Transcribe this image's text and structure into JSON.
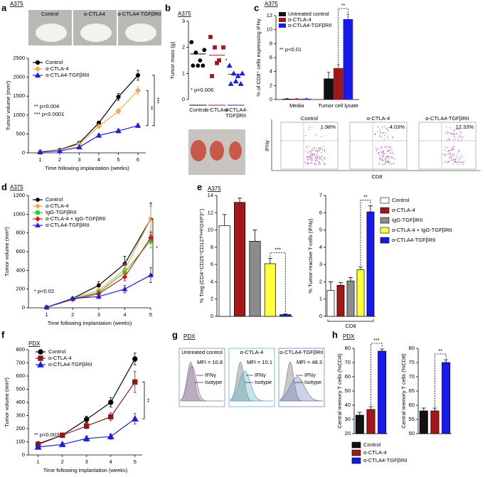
{
  "chart_data": [
    {
      "panel": "a",
      "type": "line",
      "subtitle": "A375",
      "photo_labels": [
        "Control",
        "α-CTLA4",
        "α-CTLA4-TGFβRII"
      ],
      "ylabel": "Tumor volume (mm³)",
      "xlabel": "Time following implantation (weeks)",
      "x": [
        1,
        2,
        3,
        4,
        5,
        6
      ],
      "xlim": [
        0.4,
        6.4
      ],
      "xticks": [
        1,
        2,
        3,
        4,
        5,
        6
      ],
      "ylim": [
        0,
        2500
      ],
      "yticks": [
        0,
        500,
        1000,
        1500,
        2000,
        2500
      ],
      "series": [
        {
          "name": "Control",
          "color": "#000000",
          "marker": "circle",
          "values": [
            30,
            80,
            260,
            790,
            1480,
            2050
          ],
          "errors": [
            10,
            15,
            30,
            50,
            90,
            130
          ]
        },
        {
          "name": "α-CTLA-4",
          "color": "#f0a860",
          "marker": "diamond",
          "values": [
            30,
            70,
            230,
            700,
            1100,
            1650
          ],
          "errors": [
            10,
            15,
            25,
            45,
            70,
            100
          ]
        },
        {
          "name": "α-CTLA4-TGFβRII",
          "color": "#2020d0",
          "marker": "triangle",
          "values": [
            20,
            50,
            150,
            460,
            580,
            720
          ],
          "errors": [
            8,
            10,
            20,
            40,
            50,
            50
          ]
        }
      ],
      "annotations": [
        "** p=0.004",
        "*** p<0.0001"
      ],
      "brackets": [
        "**",
        "***"
      ]
    },
    {
      "panel": "b",
      "type": "strip",
      "subtitle": "A375",
      "ylabel": "Tumor mass (g)",
      "categories": [
        "Control",
        "α-CTLA-4",
        [
          "α-CTLA4-",
          "TGFβRII"
        ]
      ],
      "ylim": [
        0,
        3
      ],
      "yticks": [
        0,
        1,
        2,
        3
      ],
      "series": [
        {
          "color": "#000000",
          "marker": "circle",
          "values": [
            2.2,
            1.9,
            1.8,
            1.5,
            1.3,
            1.3,
            1.3
          ],
          "mean": 1.75
        },
        {
          "color": "#a01818",
          "marker": "square",
          "values": [
            2.4,
            2.0,
            2.0,
            1.5,
            1.4,
            0.9
          ],
          "mean": 1.7
        },
        {
          "color": "#2020d0",
          "marker": "triangle",
          "values": [
            1.3,
            1.0,
            1.0,
            0.9,
            0.7,
            0.6,
            0.6
          ],
          "mean": 0.97
        }
      ],
      "annotations": [
        "* p=0.006"
      ],
      "brackets": [
        "*"
      ]
    },
    {
      "panel": "c",
      "type": "bar",
      "subtitle": "A375",
      "ylabel": "% of CD8⁺ cells expressing IFNγ",
      "categories": [
        "Media",
        "Tumor cell lysate"
      ],
      "ylim": [
        0,
        12
      ],
      "yticks": [
        0,
        2,
        4,
        6,
        8,
        10,
        12
      ],
      "series": [
        {
          "name": "Untreated control",
          "color": "#111111",
          "values": [
            0.1,
            3.0
          ],
          "errors": [
            0.05,
            0.9
          ]
        },
        {
          "name": "α-CTLA-4",
          "color": "#a01818",
          "values": [
            0.1,
            4.5
          ],
          "errors": [
            0.05,
            0.5
          ]
        },
        {
          "name": "α-CTLA4-TGFβRII",
          "color": "#1a1ae6",
          "values": [
            0.1,
            11.5
          ],
          "errors": [
            0.05,
            0.7
          ]
        }
      ],
      "annotations": [
        "** p<0.01"
      ],
      "brackets": [
        "**"
      ],
      "flow": {
        "titles": [
          "Control",
          "α-CTLA-4",
          "α-CTLA4-TGFβRII"
        ],
        "percents": [
          "1.98%",
          "4.03%",
          "12.33%"
        ],
        "ylabel": "IFNγ",
        "xlabel": "CD8"
      }
    },
    {
      "panel": "d",
      "type": "line",
      "subtitle": "A375",
      "ylabel": "Tumor volume (mm³)",
      "xlabel": "Time following implantation (weeks)",
      "x": [
        1,
        2,
        3,
        4,
        5
      ],
      "xlim": [
        0.3,
        5
      ],
      "xticks": [
        1,
        2,
        3,
        4,
        5
      ],
      "ylim": [
        0,
        1200
      ],
      "yticks": [
        0,
        200,
        400,
        600,
        800,
        1000,
        1200
      ],
      "series": [
        {
          "name": "Control",
          "color": "#000000",
          "marker": "circle",
          "values": [
            5,
            100,
            240,
            470,
            950
          ],
          "errors": [
            3,
            15,
            40,
            80,
            170
          ]
        },
        {
          "name": "α-CTLA-4",
          "color": "#f0a860",
          "marker": "diamond",
          "values": [
            5,
            100,
            185,
            410,
            950
          ],
          "errors": [
            3,
            15,
            30,
            60,
            130
          ]
        },
        {
          "name": "IgG-TGFβRII",
          "color": "#33cc33",
          "marker": "square",
          "values": [
            5,
            95,
            165,
            380,
            720
          ],
          "errors": [
            3,
            10,
            25,
            50,
            80
          ]
        },
        {
          "name": "α-CTLA-4 + IgG-TGFβRII",
          "color": "#cc2020",
          "marker": "diamond",
          "values": [
            5,
            90,
            150,
            330,
            750
          ],
          "errors": [
            3,
            10,
            25,
            40,
            60
          ]
        },
        {
          "name": "α-CTLA4-TGFβRII",
          "color": "#2020d0",
          "marker": "triangle",
          "values": [
            5,
            100,
            120,
            200,
            350
          ],
          "errors": [
            3,
            10,
            20,
            40,
            80
          ]
        }
      ],
      "annotations": [
        "* p<0.02"
      ],
      "brackets": [
        "*"
      ]
    },
    {
      "panel": "e",
      "type": "bar-panels",
      "subtitle": "A375",
      "legend": {
        "names": [
          "Control",
          "α-CTLA-4",
          "IgG-TGFβRII",
          "α-CTLA-4 + IgG-TGFβRII",
          "α-CTLA4-TGFβRII"
        ],
        "colors": [
          "#ffffff",
          "#a01818",
          "#8c8c8c",
          "#ffff40",
          "#1a1ae6"
        ]
      },
      "panels": [
        {
          "ylabel": "% Treg (CD4⁺CD25⁺CD127ˡᵒʷFOXP3⁺)",
          "ylim": [
            0,
            14
          ],
          "yticks": [
            0,
            2,
            4,
            6,
            8,
            10,
            12,
            14
          ],
          "values": [
            10.5,
            13.2,
            8.7,
            6.1,
            0.2
          ],
          "errors": [
            1.3,
            0.5,
            1.3,
            0.6,
            0.1
          ],
          "brackets": [
            "***"
          ]
        },
        {
          "ylabel": "% Tumor-reactive T-cells (IFNγ)",
          "ylim": [
            0,
            7
          ],
          "yticks": [
            0,
            1,
            2,
            3,
            4,
            5,
            6,
            7
          ],
          "values": [
            1.5,
            1.8,
            2.05,
            2.7,
            6.05
          ],
          "errors": [
            0.5,
            0.15,
            0.2,
            0.15,
            0.35
          ],
          "xlabel": "CD8",
          "brackets": [
            "**"
          ]
        }
      ]
    },
    {
      "panel": "f",
      "type": "line",
      "subtitle": "PDX",
      "ylabel": "Tumor volume (mm³)",
      "xlabel": "Time following implantation (weeks)",
      "x": [
        1,
        2,
        3,
        4,
        5
      ],
      "xlim": [
        0.6,
        5.3
      ],
      "xticks": [
        1,
        2,
        3,
        4,
        5
      ],
      "ylim": [
        0,
        800
      ],
      "yticks": [
        0,
        100,
        200,
        300,
        400,
        500,
        600,
        700,
        800
      ],
      "series": [
        {
          "name": "Control",
          "color": "#000000",
          "marker": "circle",
          "values": [
            85,
            150,
            270,
            400,
            730
          ],
          "errors": [
            10,
            10,
            25,
            35,
            45
          ]
        },
        {
          "name": "α-CTLA-4",
          "color": "#8b1a1a",
          "marker": "square",
          "values": [
            80,
            150,
            220,
            290,
            555
          ],
          "errors": [
            10,
            10,
            20,
            30,
            80
          ]
        },
        {
          "name": "α-CTLA4-TGFβRII",
          "color": "#2020d0",
          "marker": "triangle",
          "values": [
            60,
            80,
            125,
            140,
            275
          ],
          "errors": [
            10,
            15,
            20,
            20,
            40
          ]
        }
      ],
      "annotations": [
        "** p=0.003"
      ],
      "brackets": [
        "**"
      ]
    },
    {
      "panel": "g",
      "type": "histogram-overlay",
      "subtitle": "PDX",
      "titles": [
        "Untreated control",
        "α-CTLA-4",
        "α-CTLA4-TGFβRII"
      ],
      "mfi": [
        "MFI = 10.8",
        "MFI = 10.1",
        "MFI = 48.3"
      ],
      "labels": [
        "IFNγ",
        "Isotype"
      ],
      "colors": [
        "#9a7fb0",
        "#5fb0c8",
        "#6f7fc0"
      ]
    },
    {
      "panel": "h",
      "type": "bar-panels",
      "subtitle": "PDX",
      "legend": {
        "names": [
          "Control",
          "α-CTLA-4",
          "α-CTLA4-TGFβRII"
        ],
        "colors": [
          "#111111",
          "#a01818",
          "#1a1ae6"
        ]
      },
      "panels": [
        {
          "ylabel": "Central memory T cells (%CD4)",
          "ylim": [
            20,
            80
          ],
          "yticks": [
            20,
            30,
            40,
            50,
            60,
            70,
            80
          ],
          "values": [
            33,
            37,
            78
          ],
          "errors": [
            2,
            2,
            1.5
          ],
          "brackets": [
            "***"
          ]
        },
        {
          "ylabel": "Central memory T cells (%CD8)",
          "ylim": [
            50,
            80
          ],
          "yticks": [
            50,
            55,
            60,
            65,
            70,
            75,
            80
          ],
          "values": [
            58,
            58,
            75
          ],
          "errors": [
            1,
            1,
            1
          ],
          "brackets": [
            "**"
          ]
        }
      ]
    }
  ]
}
